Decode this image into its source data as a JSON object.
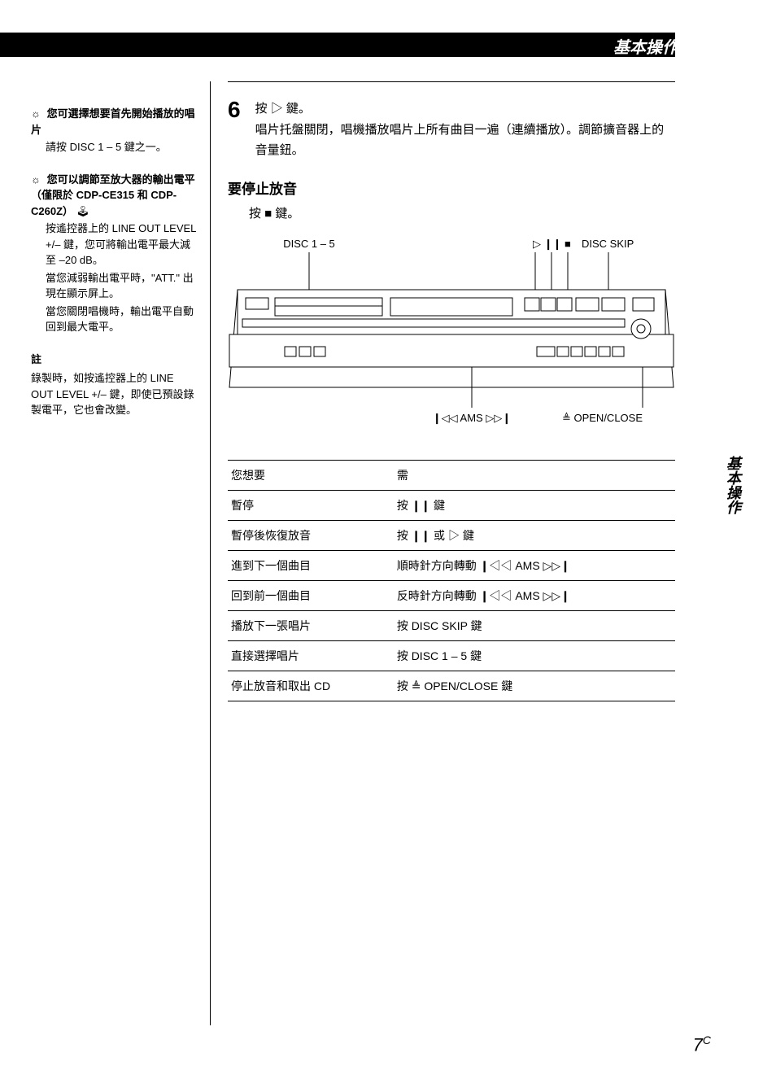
{
  "colors": {
    "page_bg": "#ffffff",
    "text": "#000000",
    "header_bg": "#000000",
    "header_text": "#ffffff"
  },
  "header": {
    "title": "基本操作"
  },
  "side_tab": "基本操作",
  "page_number": "7",
  "page_number_sup": "C",
  "sidebar": {
    "tip1": {
      "icon": "☼",
      "head": "您可選擇想要首先開始播放的唱片",
      "body": "請按 DISC 1 – 5 鍵之一。"
    },
    "tip2": {
      "icon": "☼",
      "head": "您可以調節至放大器的輸出電平（僅限於 CDP-CE315 和 CDP-C260Z）",
      "remote_icon": "🕹",
      "body1": "按遙控器上的 LINE OUT LEVEL +/– 鍵，您可將輸出電平最大減至 –20 dB。",
      "body2": "當您減弱輸出電平時，\"ATT.\" 出現在顯示屏上。",
      "body3": "當您關閉唱機時，輸出電平自動回到最大電平。"
    },
    "note": {
      "head": "註",
      "body": "錄製時，如按遙控器上的 LINE OUT LEVEL +/– 鍵，即使已預設錄製電平，它也會改變。"
    }
  },
  "step6": {
    "num": "6",
    "line1": "按 ▷ 鍵。",
    "line2": "唱片托盤關閉，唱機播放唱片上所有曲目一遍（連續播放）。調節擴音器上的音量鈕。"
  },
  "stop": {
    "title": "要停止放音",
    "sub": "按 ■ 鍵。"
  },
  "diagram": {
    "labels": {
      "disc": "DISC 1 – 5",
      "play": "▷",
      "pause": "❙❙",
      "stop": "■",
      "disc_skip": "DISC SKIP",
      "ams": "�ková AMS ▷▷❙",
      "ams_text": "❙◁◁ AMS ▷▷❙",
      "open_close": "≜ OPEN/CLOSE"
    },
    "stroke": "#000000",
    "fill": "#ffffff"
  },
  "table": {
    "header": {
      "col1": "您想要",
      "col2": "需"
    },
    "rows": [
      {
        "c1": "暫停",
        "c2": "按 ❙❙ 鍵"
      },
      {
        "c1": "暫停後恢復放音",
        "c2": "按 ❙❙ 或 ▷ 鍵"
      },
      {
        "c1": "進到下一個曲目",
        "c2": "順時針方向轉動 ❙◁◁ AMS ▷▷❙"
      },
      {
        "c1": "回到前一個曲目",
        "c2": "反時針方向轉動 ❙◁◁ AMS ▷▷❙"
      },
      {
        "c1": "播放下一張唱片",
        "c2": "按 DISC SKIP 鍵"
      },
      {
        "c1": "直接選擇唱片",
        "c2": "按 DISC 1 – 5 鍵"
      },
      {
        "c1": "停止放音和取出 CD",
        "c2": "按 ≜ OPEN/CLOSE 鍵"
      }
    ]
  }
}
